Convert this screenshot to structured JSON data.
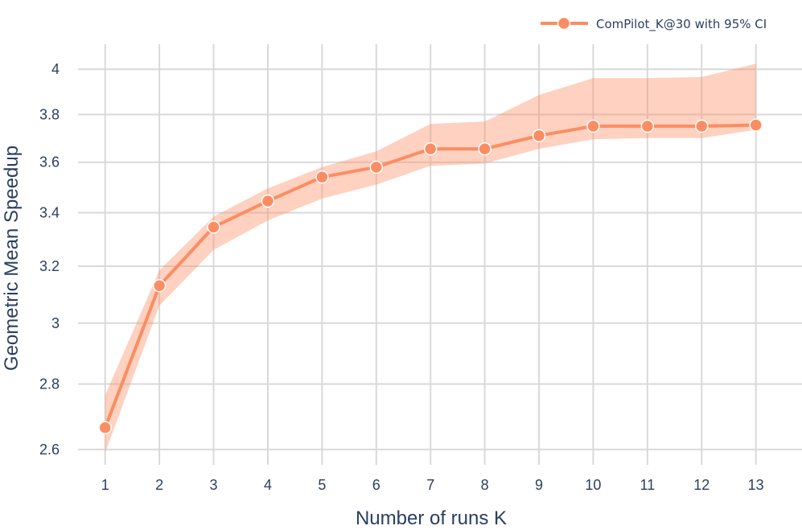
{
  "chart_data": {
    "type": "line",
    "xlabel": "Number of runs K",
    "ylabel": "Geometric Mean Speedup",
    "x": [
      1,
      2,
      3,
      4,
      5,
      6,
      7,
      8,
      9,
      10,
      11,
      12,
      13
    ],
    "x_ticks": [
      "1",
      "2",
      "3",
      "4",
      "5",
      "6",
      "7",
      "8",
      "9",
      "10",
      "11",
      "12",
      "13"
    ],
    "y_ticks": [
      "2.6",
      "2.8",
      "3",
      "3.2",
      "3.4",
      "3.6",
      "3.8",
      "4"
    ],
    "y_tick_values": [
      2.6,
      2.8,
      3.0,
      3.2,
      3.4,
      3.6,
      3.8,
      4.0
    ],
    "xlim": [
      0.5,
      13.85
    ],
    "ylim": [
      2.555,
      4.115
    ],
    "y_scale": "log",
    "grid": true,
    "legend_position": "top-right",
    "series": [
      {
        "name": "ComPilot_K@30 with 95% CI",
        "color": "#fc8d62",
        "band_color": "#fc8d62",
        "values": [
          2.665,
          3.13,
          3.345,
          3.445,
          3.54,
          3.58,
          3.655,
          3.655,
          3.71,
          3.75,
          3.75,
          3.75,
          3.755
        ],
        "ci_lower": [
          2.59,
          3.06,
          3.26,
          3.37,
          3.455,
          3.51,
          3.585,
          3.595,
          3.655,
          3.695,
          3.7,
          3.7,
          3.735
        ],
        "ci_upper": [
          2.765,
          3.185,
          3.385,
          3.495,
          3.58,
          3.645,
          3.76,
          3.77,
          3.885,
          3.96,
          3.96,
          3.965,
          4.025
        ]
      }
    ]
  }
}
